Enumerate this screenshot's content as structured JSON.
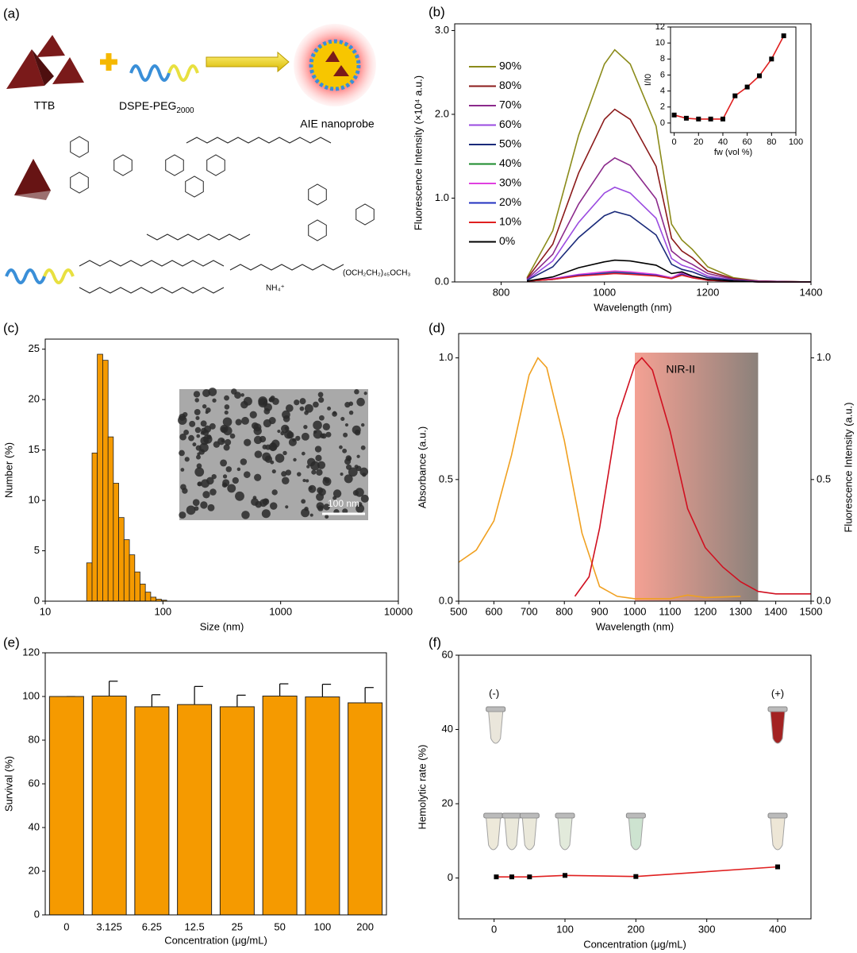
{
  "diagram": {
    "panel_label": "(a)",
    "ttb": "TTB",
    "dspe": "DSPE-PEG",
    "dspe_sub": "2000",
    "probe": "AIE nanoprobe",
    "formula_peg": "(OCH₂CH₂)₄₅OCH₃",
    "formula_nh4": "NH₄⁺"
  },
  "chart_data": [
    {
      "type": "line",
      "panel_label": "(b)",
      "xlabel": "Wavelength (nm)",
      "ylabel": "Fluorescence Intensity (×10⁴ a.u.)",
      "x": [
        850,
        900,
        950,
        1000,
        1020,
        1050,
        1100,
        1130,
        1150,
        1170,
        1200,
        1250,
        1300,
        1400
      ],
      "xlim": [
        710,
        1400
      ],
      "xticks": [
        800,
        1000,
        1200,
        1400
      ],
      "ylim": [
        0,
        3.08
      ],
      "yticks": [
        {
          "value": 0,
          "label": "0.0"
        },
        {
          "value": 1,
          "label": "1.0"
        },
        {
          "value": 2,
          "label": "2.0"
        },
        {
          "value": 3,
          "label": "3.0"
        }
      ],
      "legend": "upper left",
      "series": [
        {
          "name": "90%",
          "color": "#8b8b1a",
          "values": [
            0.05,
            0.61,
            1.75,
            2.6,
            2.77,
            2.6,
            1.86,
            0.69,
            0.5,
            0.39,
            0.18,
            0.05,
            0.01,
            0
          ]
        },
        {
          "name": "80%",
          "color": "#8b1a1a",
          "values": [
            0.04,
            0.45,
            1.3,
            1.94,
            2.06,
            1.94,
            1.38,
            0.52,
            0.37,
            0.29,
            0.13,
            0.04,
            0.01,
            0
          ]
        },
        {
          "name": "70%",
          "color": "#8b2a8b",
          "values": [
            0.03,
            0.33,
            0.93,
            1.39,
            1.48,
            1.39,
            0.99,
            0.37,
            0.27,
            0.21,
            0.1,
            0.03,
            0.01,
            0
          ]
        },
        {
          "name": "60%",
          "color": "#9a4ae0",
          "values": [
            0.02,
            0.25,
            0.71,
            1.06,
            1.13,
            1.06,
            0.76,
            0.28,
            0.2,
            0.16,
            0.07,
            0.02,
            0,
            0
          ]
        },
        {
          "name": "50%",
          "color": "#1a2a7a",
          "values": [
            0.02,
            0.18,
            0.53,
            0.79,
            0.84,
            0.79,
            0.56,
            0.21,
            0.15,
            0.12,
            0.05,
            0.02,
            0,
            0
          ]
        },
        {
          "name": "40%",
          "color": "#1a8a2a",
          "values": [
            0.01,
            0.03,
            0.08,
            0.11,
            0.12,
            0.11,
            0.08,
            0.05,
            0.1,
            0.06,
            0.02,
            0.01,
            0,
            0
          ]
        },
        {
          "name": "30%",
          "color": "#e040e0",
          "values": [
            0.01,
            0.04,
            0.09,
            0.12,
            0.13,
            0.12,
            0.09,
            0.05,
            0.11,
            0.06,
            0.02,
            0.01,
            0,
            0
          ]
        },
        {
          "name": "20%",
          "color": "#2030c0",
          "values": [
            0.01,
            0.03,
            0.08,
            0.1,
            0.11,
            0.1,
            0.08,
            0.04,
            0.09,
            0.05,
            0.02,
            0.01,
            0,
            0
          ]
        },
        {
          "name": "10%",
          "color": "#e02020",
          "values": [
            0.01,
            0.03,
            0.07,
            0.09,
            0.1,
            0.09,
            0.07,
            0.04,
            0.08,
            0.05,
            0.02,
            0.01,
            0,
            0
          ]
        },
        {
          "name": "0%",
          "color": "#000000",
          "values": [
            0.01,
            0.06,
            0.17,
            0.24,
            0.26,
            0.25,
            0.2,
            0.1,
            0.12,
            0.07,
            0.03,
            0.01,
            0,
            0
          ]
        }
      ]
    },
    {
      "type": "line",
      "xlabel": "fw (vol %)",
      "ylabel": "I/I0",
      "x": [
        0,
        10,
        20,
        30,
        40,
        50,
        60,
        70,
        80,
        90
      ],
      "xlim": [
        -3,
        100
      ],
      "xticks": [
        0,
        20,
        40,
        60,
        80,
        100
      ],
      "ylim": [
        -1.2,
        12
      ],
      "yticks": [
        0,
        2,
        4,
        6,
        8,
        10,
        12
      ],
      "markers": true,
      "marker_color": "#000000",
      "series": [
        {
          "color": "#e02020",
          "values": [
            1.0,
            0.6,
            0.5,
            0.5,
            0.5,
            3.4,
            4.5,
            5.9,
            8.0,
            10.9
          ]
        }
      ]
    },
    {
      "type": "histogram",
      "panel_label": "(c)",
      "xlabel": "Size (nm)",
      "ylabel": "Number (%)",
      "bins": [
        22.5,
        25,
        27.7,
        30.8,
        34.2,
        37.9,
        42.1,
        46.7,
        51.9,
        57.6,
        63.9,
        70.9,
        78.7,
        87.4,
        97,
        107.7
      ],
      "values": [
        3.8,
        14.7,
        24.5,
        23.9,
        16.3,
        11.7,
        8.3,
        6.1,
        4.6,
        2.9,
        1.7,
        0.9,
        0.4,
        0.2,
        0.1
      ],
      "color": "#f59a00",
      "xlim": [
        10,
        10000
      ],
      "xlog": true,
      "xticks": [
        10,
        100,
        1000,
        10000
      ],
      "ylim": [
        0,
        26
      ],
      "yticks": [
        0,
        5,
        10,
        15,
        20,
        25
      ],
      "scale_bar_label": "100 nm"
    },
    {
      "type": "line",
      "panel_label": "(d)",
      "xlabel": "Wavelength (nm)",
      "ylabel": "Absorbance (a.u.)",
      "y2label": "Fluorescence Intensity (a.u.)",
      "xlim": [
        500,
        1500
      ],
      "xticks": [
        500,
        600,
        700,
        800,
        900,
        1000,
        1100,
        1200,
        1300,
        1400,
        1500
      ],
      "ylim": [
        0,
        1.1
      ],
      "yticks": [
        {
          "value": 0,
          "label": "0.0"
        },
        0.5,
        {
          "value": 1,
          "label": "1.0"
        }
      ],
      "y2lim": [
        0,
        1.1
      ],
      "y2ticks": [
        {
          "value": 0,
          "label": "0.0"
        },
        0.5,
        {
          "value": 1,
          "label": "1.0"
        }
      ],
      "shaded_region": [
        1000,
        1350
      ],
      "shaded_label": "NIR-II",
      "series": [
        {
          "color": "#f0a020",
          "x": [
            500,
            550,
            600,
            650,
            700,
            725,
            750,
            800,
            850,
            900,
            950,
            1000,
            1100,
            1150,
            1200,
            1300
          ],
          "values": [
            0.16,
            0.21,
            0.33,
            0.6,
            0.93,
            1.0,
            0.96,
            0.66,
            0.28,
            0.06,
            0.02,
            0.01,
            0.01,
            0.025,
            0.015,
            0.02
          ]
        },
        {
          "color": "#d01020",
          "axis": "y2",
          "x": [
            830,
            870,
            900,
            950,
            1000,
            1020,
            1050,
            1100,
            1150,
            1200,
            1250,
            1300,
            1350,
            1400,
            1500
          ],
          "values": [
            0.02,
            0.1,
            0.3,
            0.75,
            0.97,
            1.0,
            0.95,
            0.7,
            0.38,
            0.22,
            0.14,
            0.08,
            0.04,
            0.03,
            0.03
          ]
        }
      ]
    },
    {
      "type": "bar",
      "panel_label": "(e)",
      "xlabel": "Concentration (μg/mL)",
      "ylabel": "Survival  (%)",
      "categories": [
        "0",
        "3.125",
        "6.25",
        "12.5",
        "25",
        "50",
        "100",
        "200"
      ],
      "values": [
        100,
        100.2,
        95.3,
        96.3,
        95.3,
        100.2,
        99.8,
        97.1
      ],
      "errors": [
        0,
        6.8,
        5.5,
        8.3,
        5.3,
        5.6,
        5.8,
        7.0
      ],
      "color": "#f59a00",
      "ylim": [
        0,
        120
      ],
      "yticks": [
        0,
        20,
        40,
        60,
        80,
        100,
        120
      ]
    },
    {
      "type": "line",
      "panel_label": "(f)",
      "xlabel": "Concentration (μg/mL)",
      "ylabel": "Hemolytic rate (%)",
      "x": [
        3.125,
        25,
        50,
        100,
        200,
        400
      ],
      "xlim": [
        -50,
        447
      ],
      "xticks": [
        0,
        100,
        200,
        300,
        400
      ],
      "ylim": [
        -11,
        60
      ],
      "yticks": [
        0,
        20,
        40,
        60
      ],
      "markers": true,
      "marker_color": "#000000",
      "annotations": [
        "(-)",
        "(+)"
      ],
      "series": [
        {
          "color": "#e02020",
          "values": [
            0.3,
            0.3,
            0.3,
            0.7,
            0.4,
            3.0
          ]
        }
      ]
    }
  ]
}
